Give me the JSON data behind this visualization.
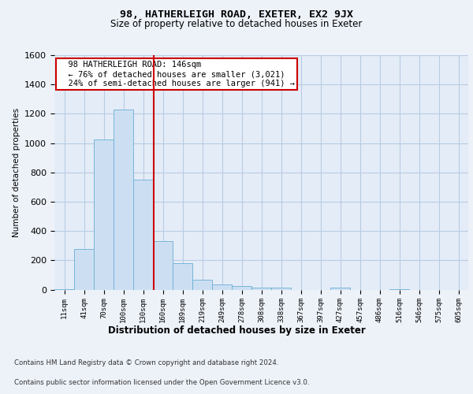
{
  "title1": "98, HATHERLEIGH ROAD, EXETER, EX2 9JX",
  "title2": "Size of property relative to detached houses in Exeter",
  "xlabel": "Distribution of detached houses by size in Exeter",
  "ylabel": "Number of detached properties",
  "bin_labels": [
    "11sqm",
    "41sqm",
    "70sqm",
    "100sqm",
    "130sqm",
    "160sqm",
    "189sqm",
    "219sqm",
    "249sqm",
    "278sqm",
    "308sqm",
    "338sqm",
    "367sqm",
    "397sqm",
    "427sqm",
    "457sqm",
    "486sqm",
    "516sqm",
    "546sqm",
    "575sqm",
    "605sqm"
  ],
  "bar_heights": [
    5,
    275,
    1025,
    1230,
    750,
    330,
    180,
    65,
    35,
    25,
    15,
    15,
    0,
    0,
    15,
    0,
    0,
    5,
    0,
    0,
    0
  ],
  "bar_color": "#ccdff2",
  "bar_edge_color": "#6aaed6",
  "grid_color": "#b8cce4",
  "vline_color": "#cc0000",
  "annotation_box_color": "#cc0000",
  "ylim": [
    0,
    1600
  ],
  "yticks": [
    0,
    200,
    400,
    600,
    800,
    1000,
    1200,
    1400,
    1600
  ],
  "footnote1": "Contains HM Land Registry data © Crown copyright and database right 2024.",
  "footnote2": "Contains public sector information licensed under the Open Government Licence v3.0.",
  "background_color": "#edf2f9",
  "plot_background_color": "#e4ecf7"
}
